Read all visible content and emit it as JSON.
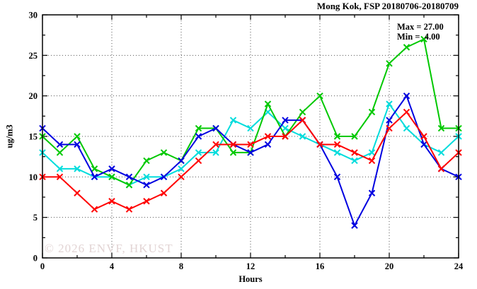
{
  "title": "Mong Kok, FSP 20180706-20180709",
  "annotation": {
    "max_label": "Max = 27.00",
    "min_label": "Min =  4.00"
  },
  "watermark": "© 2026 ENVF, HKUST",
  "chart_data": {
    "type": "line",
    "title": "Mong Kok, FSP 20180706-20180709",
    "xlabel": "Hours",
    "ylabel": "ug/m3",
    "xlim": [
      0,
      24
    ],
    "ylim": [
      0,
      30
    ],
    "x_major_ticks": [
      0,
      4,
      8,
      12,
      16,
      20,
      24
    ],
    "x_minor_step": 2,
    "y_major_ticks": [
      0,
      5,
      10,
      15,
      20,
      25,
      30
    ],
    "y_minor_step": 2.5,
    "x_grid": [
      4,
      8,
      12,
      16,
      20
    ],
    "y_grid": [
      5,
      10,
      15,
      20,
      25
    ],
    "grid": true,
    "legend": "none",
    "marker": "x-cross",
    "max": 27.0,
    "min": 4.0,
    "x": [
      0,
      1,
      2,
      3,
      4,
      5,
      6,
      7,
      8,
      9,
      10,
      11,
      12,
      13,
      14,
      15,
      16,
      17,
      18,
      19,
      20,
      21,
      22,
      23,
      24
    ],
    "series": [
      {
        "name": "cyan-series",
        "color": "#00dcdc",
        "values": [
          13,
          11,
          11,
          10,
          10,
          9,
          10,
          10,
          11,
          13,
          13,
          17,
          16,
          18,
          16,
          15,
          14,
          13,
          12,
          13,
          19,
          16,
          14,
          13,
          15
        ]
      },
      {
        "name": "green-series",
        "color": "#00c800",
        "values": [
          15,
          13,
          15,
          11,
          10,
          9,
          12,
          13,
          12,
          16,
          16,
          13,
          13,
          19,
          15,
          18,
          20,
          15,
          15,
          18,
          24,
          26,
          27,
          16,
          16
        ]
      },
      {
        "name": "blue-series",
        "color": "#0000e0",
        "values": [
          16,
          14,
          14,
          10,
          11,
          10,
          9,
          10,
          12,
          15,
          16,
          14,
          13,
          14,
          17,
          17,
          14,
          10,
          4,
          8,
          17,
          20,
          14,
          11,
          10
        ]
      },
      {
        "name": "red-series",
        "color": "#ff0000",
        "values": [
          10,
          10,
          8,
          6,
          7,
          6,
          7,
          8,
          10,
          12,
          14,
          14,
          14,
          15,
          15,
          17,
          14,
          14,
          13,
          12,
          16,
          18,
          15,
          11,
          13
        ]
      }
    ]
  }
}
